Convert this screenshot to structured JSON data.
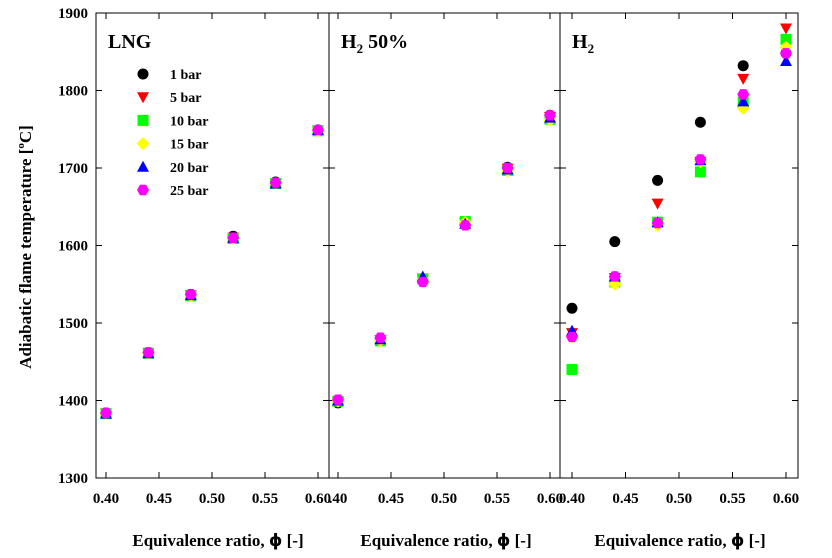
{
  "ylabel": {
    "pre": "Adiabatic flame temperature [",
    "sup": "o",
    "post": "C]"
  },
  "xlabel_prefix": "Equivalence ratio,  ",
  "xlabel_symbol": "ϕ",
  "xlabel_unit": " [-]",
  "series_names": [
    "1 bar",
    "5 bar",
    "10 bar",
    "15 bar",
    "20 bar",
    "25 bar"
  ],
  "colors": {
    "1 bar": "#000000",
    "5 bar": "#ff0000",
    "10 bar": "#00ff00",
    "15 bar": "#ffff00",
    "20 bar": "#0000ff",
    "25 bar": "#ff00ff"
  },
  "markers": {
    "1 bar": "circle",
    "5 bar": "triangle-down",
    "10 bar": "square",
    "15 bar": "diamond",
    "20 bar": "triangle-up",
    "25 bar": "hexagon"
  },
  "chart_data": [
    {
      "type": "scatter",
      "panel_title": {
        "base": "LNG",
        "sub": "",
        "rest": ""
      },
      "legend": "top-left",
      "xlim": [
        0.4,
        0.6
      ],
      "ylim": [
        1300,
        1900
      ],
      "xticks": [
        "0.40",
        "0.45",
        "0.50",
        "0.55",
        "0.60"
      ],
      "yticks": [
        "1300",
        "1400",
        "1500",
        "1600",
        "1700",
        "1800",
        "1900"
      ],
      "x": [
        0.4,
        0.44,
        0.48,
        0.52,
        0.56,
        0.6
      ],
      "series": [
        {
          "name": "1 bar",
          "values": [
            1384,
            1462,
            1537,
            1612,
            1682,
            1749
          ]
        },
        {
          "name": "5 bar",
          "values": [
            1383,
            1461,
            1536,
            1610,
            1680,
            1748
          ]
        },
        {
          "name": "10 bar",
          "values": [
            1383,
            1461,
            1535,
            1609,
            1680,
            1748
          ]
        },
        {
          "name": "15 bar",
          "values": [
            1383,
            1461,
            1535,
            1609,
            1680,
            1748
          ]
        },
        {
          "name": "20 bar",
          "values": [
            1383,
            1461,
            1536,
            1610,
            1680,
            1749
          ]
        },
        {
          "name": "25 bar",
          "values": [
            1384,
            1462,
            1537,
            1610,
            1681,
            1749
          ]
        }
      ]
    },
    {
      "type": "scatter",
      "panel_title": {
        "base": "H",
        "sub": "2",
        "rest": " 50%"
      },
      "xlim": [
        0.4,
        0.6
      ],
      "ylim": [
        1300,
        1900
      ],
      "xticks": [
        ".40",
        "0.45",
        "0.50",
        "0.55",
        "0.60"
      ],
      "x": [
        0.4,
        0.44,
        0.48,
        0.52,
        0.56,
        0.6
      ],
      "series": [
        {
          "name": "1 bar",
          "values": [
            1397,
            1479,
            1555,
            1628,
            1701,
            1768
          ]
        },
        {
          "name": "5 bar",
          "values": [
            1398,
            1478,
            1556,
            1629,
            1699,
            1766
          ]
        },
        {
          "name": "10 bar",
          "values": [
            1399,
            1477,
            1557,
            1631,
            1697,
            1763
          ]
        },
        {
          "name": "15 bar",
          "values": [
            1399,
            1477,
            1556,
            1630,
            1696,
            1762
          ]
        },
        {
          "name": "20 bar",
          "values": [
            1400,
            1479,
            1560,
            1628,
            1698,
            1765
          ]
        },
        {
          "name": "25 bar",
          "values": [
            1401,
            1481,
            1553,
            1626,
            1700,
            1768
          ]
        }
      ]
    },
    {
      "type": "scatter",
      "panel_title": {
        "base": "H",
        "sub": "2",
        "rest": ""
      },
      "xlim": [
        0.4,
        0.6
      ],
      "ylim": [
        1300,
        1900
      ],
      "xticks": [
        "0.40",
        "0.45",
        "0.50",
        "0.55",
        "0.60"
      ],
      "x": [
        0.4,
        0.44,
        0.48,
        0.52,
        0.56,
        0.6
      ],
      "series": [
        {
          "name": "1 bar",
          "values": [
            1519,
            1605,
            1684,
            1759,
            1832,
            1848
          ]
        },
        {
          "name": "5 bar",
          "values": [
            1487,
            1558,
            1654,
            1708,
            1815,
            1880
          ]
        },
        {
          "name": "10 bar",
          "values": [
            1440,
            1553,
            1630,
            1695,
            1785,
            1866
          ]
        },
        {
          "name": "15 bar",
          "values": [
            1482,
            1550,
            1626,
            1708,
            1777,
            1856
          ]
        },
        {
          "name": "20 bar",
          "values": [
            1490,
            1560,
            1630,
            1710,
            1786,
            1838
          ]
        },
        {
          "name": "25 bar",
          "values": [
            1482,
            1560,
            1629,
            1711,
            1795,
            1848
          ]
        }
      ]
    }
  ]
}
